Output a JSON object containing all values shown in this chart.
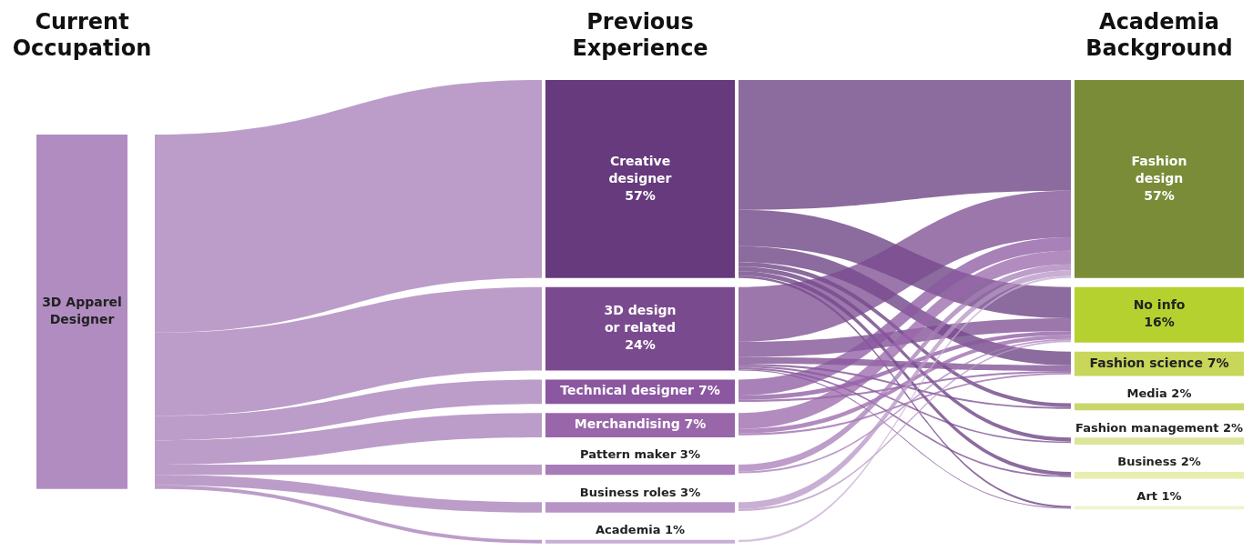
{
  "chart_data": [
    {
      "type": "other",
      "title": "Current Occupation",
      "categories": [
        "3D Apparel Designer"
      ],
      "colors": [
        "#b08cc0"
      ]
    },
    {
      "type": "other",
      "title": "Previous Experience",
      "categories": [
        "Creative designer",
        "3D design or related",
        "Technical designer",
        "Merchandising",
        "Pattern maker",
        "Business roles",
        "Academia"
      ],
      "values": [
        57,
        24,
        7,
        7,
        3,
        3,
        1
      ],
      "value_labels": [
        "57%",
        "24%",
        "7%",
        "7%",
        "3%",
        "3%",
        "1%"
      ],
      "colors": [
        "#663a7d",
        "#7a4a8f",
        "#8b57a0",
        "#9966aa",
        "#a77cb8",
        "#b894c6",
        "#c9aed5"
      ]
    },
    {
      "type": "other",
      "title": "Academia Background",
      "categories": [
        "Fashion design",
        "No info",
        "Fashion science",
        "Media",
        "Fashion management",
        "Business",
        "Art"
      ],
      "values": [
        57,
        16,
        7,
        2,
        2,
        2,
        1
      ],
      "value_labels": [
        "57%",
        "16%",
        "7%",
        "2%",
        "2%",
        "2%",
        "1%"
      ],
      "colors": [
        "#7a8c38",
        "#b5d130",
        "#c8d65a",
        "#c9d76a",
        "#dde59a",
        "#e8eeb0",
        "#f0f3cc"
      ]
    }
  ]
}
